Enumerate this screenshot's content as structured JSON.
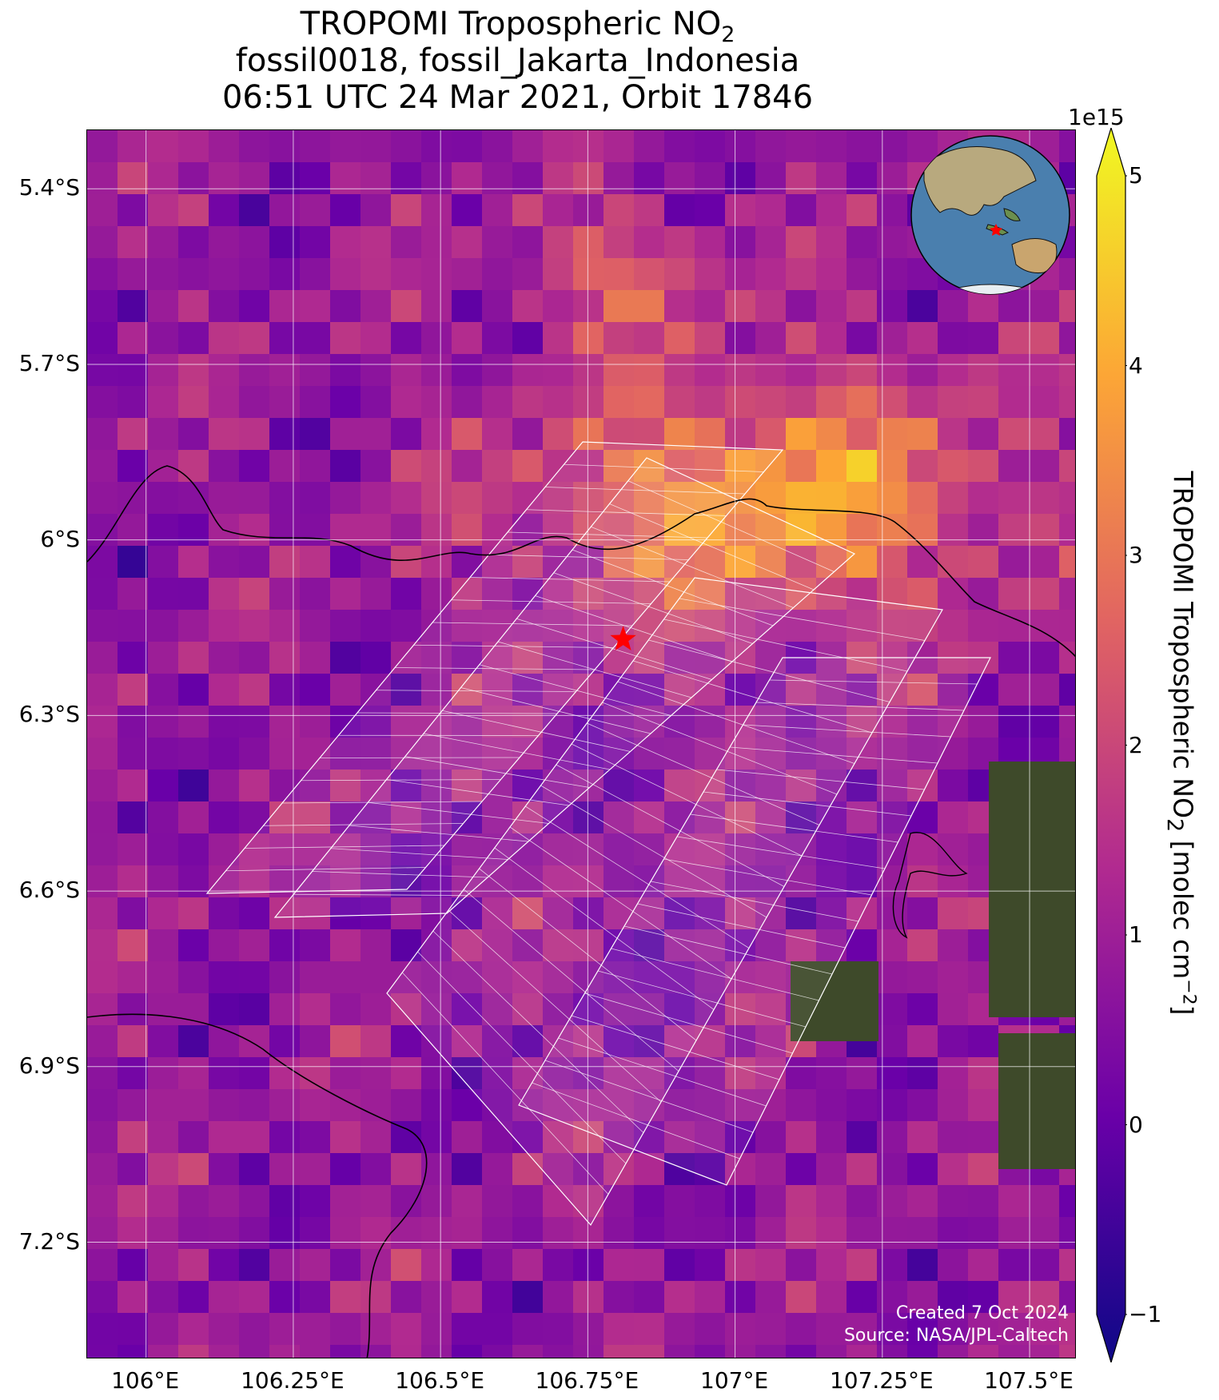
{
  "title": {
    "line1_prefix": "TROPOMI Tropospheric NO",
    "line1_sub": "2",
    "line2": "fossil0018, fossil_Jakarta_Indonesia",
    "line3": "06:51 UTC 24 Mar 2021, Orbit 17846"
  },
  "map": {
    "lon_range": [
      105.9,
      107.58
    ],
    "lat_range": [
      -7.4,
      -5.3
    ],
    "lat_ticks": [
      {
        "value": -5.4,
        "label": "5.4°S"
      },
      {
        "value": -5.7,
        "label": "5.7°S"
      },
      {
        "value": -6.0,
        "label": "6°S"
      },
      {
        "value": -6.3,
        "label": "6.3°S"
      },
      {
        "value": -6.6,
        "label": "6.6°S"
      },
      {
        "value": -6.9,
        "label": "6.9°S"
      },
      {
        "value": -7.2,
        "label": "7.2°S"
      }
    ],
    "lon_ticks": [
      {
        "value": 106.0,
        "label": "106°E"
      },
      {
        "value": 106.25,
        "label": "106.25°E"
      },
      {
        "value": 106.5,
        "label": "106.5°E"
      },
      {
        "value": 106.75,
        "label": "106.75°E"
      },
      {
        "value": 107.0,
        "label": "107°E"
      },
      {
        "value": 107.25,
        "label": "107.25°E"
      },
      {
        "value": 107.5,
        "label": "107.5°E"
      }
    ],
    "target_marker": {
      "lon": 106.81,
      "lat": -6.17,
      "color": "#ff0000"
    },
    "gridlines": true
  },
  "colorbar": {
    "multiplier": "1e15",
    "label_prefix": "TROPOMI Tropospheric NO",
    "label_sub": "2",
    "label_suffix": " [molec cm",
    "label_sup": "−2",
    "label_end": "]",
    "range": [
      -1,
      5
    ],
    "ticks": [
      {
        "value": -1,
        "label": "−1"
      },
      {
        "value": 0,
        "label": "0"
      },
      {
        "value": 1,
        "label": "1"
      },
      {
        "value": 2,
        "label": "2"
      },
      {
        "value": 3,
        "label": "3"
      },
      {
        "value": 4,
        "label": "4"
      },
      {
        "value": 5,
        "label": "5"
      }
    ],
    "colormap": "plasma",
    "colors": [
      "#0d0887",
      "#6a00a8",
      "#b12a90",
      "#e16462",
      "#fca636",
      "#f0f921"
    ]
  },
  "credits": {
    "line1": "Created 7 Oct 2024",
    "line2": "Source: NASA/JPL-Caltech"
  }
}
